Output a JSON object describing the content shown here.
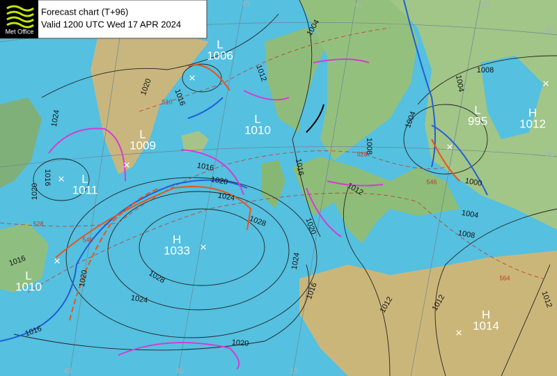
{
  "header": {
    "title": "Forecast chart (T+96)",
    "valid": "Valid 1200 UTC Wed 17 APR 2024",
    "logo": "Met Office"
  },
  "centers": [
    {
      "type": "L",
      "pressure": "1006"
    },
    {
      "type": "L",
      "pressure": "1010"
    },
    {
      "type": "L",
      "pressure": "1009"
    },
    {
      "type": "L",
      "pressure": "1011"
    },
    {
      "type": "H",
      "pressure": "1033"
    },
    {
      "type": "L",
      "pressure": "1010"
    },
    {
      "type": "L",
      "pressure": "995"
    },
    {
      "type": "H",
      "pressure": "1012"
    },
    {
      "type": "H",
      "pressure": "1014"
    }
  ],
  "isobar_labels": [
    "1004",
    "1012",
    "1020",
    "1016",
    "1024",
    "1016",
    "1020",
    "1016",
    "1020",
    "1024",
    "1028",
    "1016",
    "1020",
    "1024",
    "1028",
    "1024",
    "1020",
    "1016",
    "1016",
    "1020",
    "1016",
    "1012",
    "1012",
    "1012",
    "1008",
    "1004",
    "1004",
    "1008",
    "1012",
    "1004",
    "1008",
    "1000"
  ],
  "thickness_labels": [
    "510",
    "528",
    "528",
    "546",
    "546",
    "564"
  ],
  "grid_labels": [
    "45",
    "45",
    "45",
    "30",
    "30",
    "15",
    "30",
    "45"
  ]
}
